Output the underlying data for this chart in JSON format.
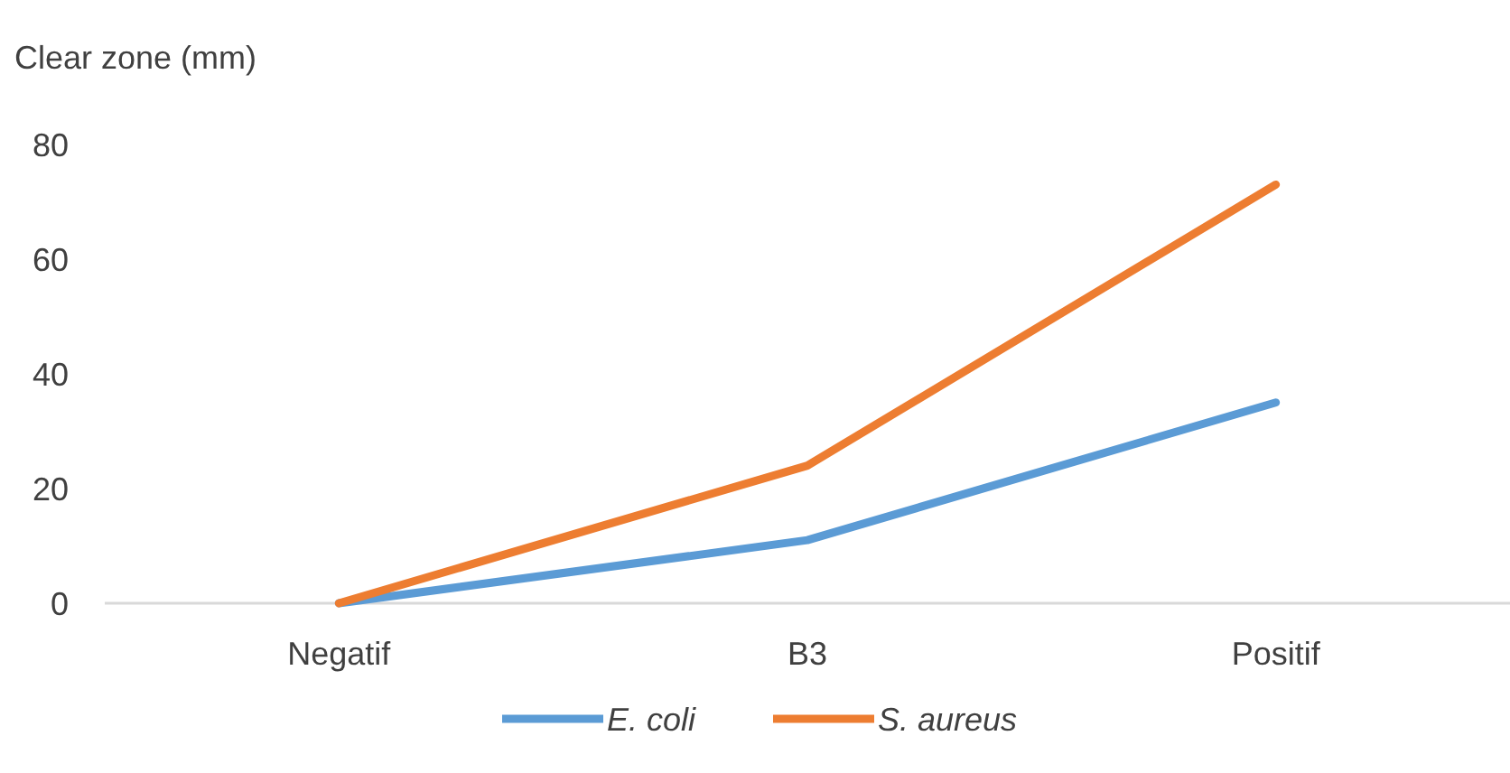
{
  "chart_data": {
    "type": "line",
    "ylabel": "Clear zone (mm)",
    "categories": [
      "Negatif",
      "B3",
      "Positif"
    ],
    "series": [
      {
        "name": "E. coli",
        "color": "#5b9bd5",
        "values": [
          0,
          11,
          35
        ]
      },
      {
        "name": "S. aureus",
        "color": "#ed7d31",
        "values": [
          0,
          24,
          73
        ]
      }
    ],
    "ylim": [
      0,
      80
    ],
    "yticks": [
      0,
      20,
      40,
      60,
      80
    ],
    "grid": false,
    "legend": "bottom",
    "marker": "none",
    "line_style": "solid"
  }
}
